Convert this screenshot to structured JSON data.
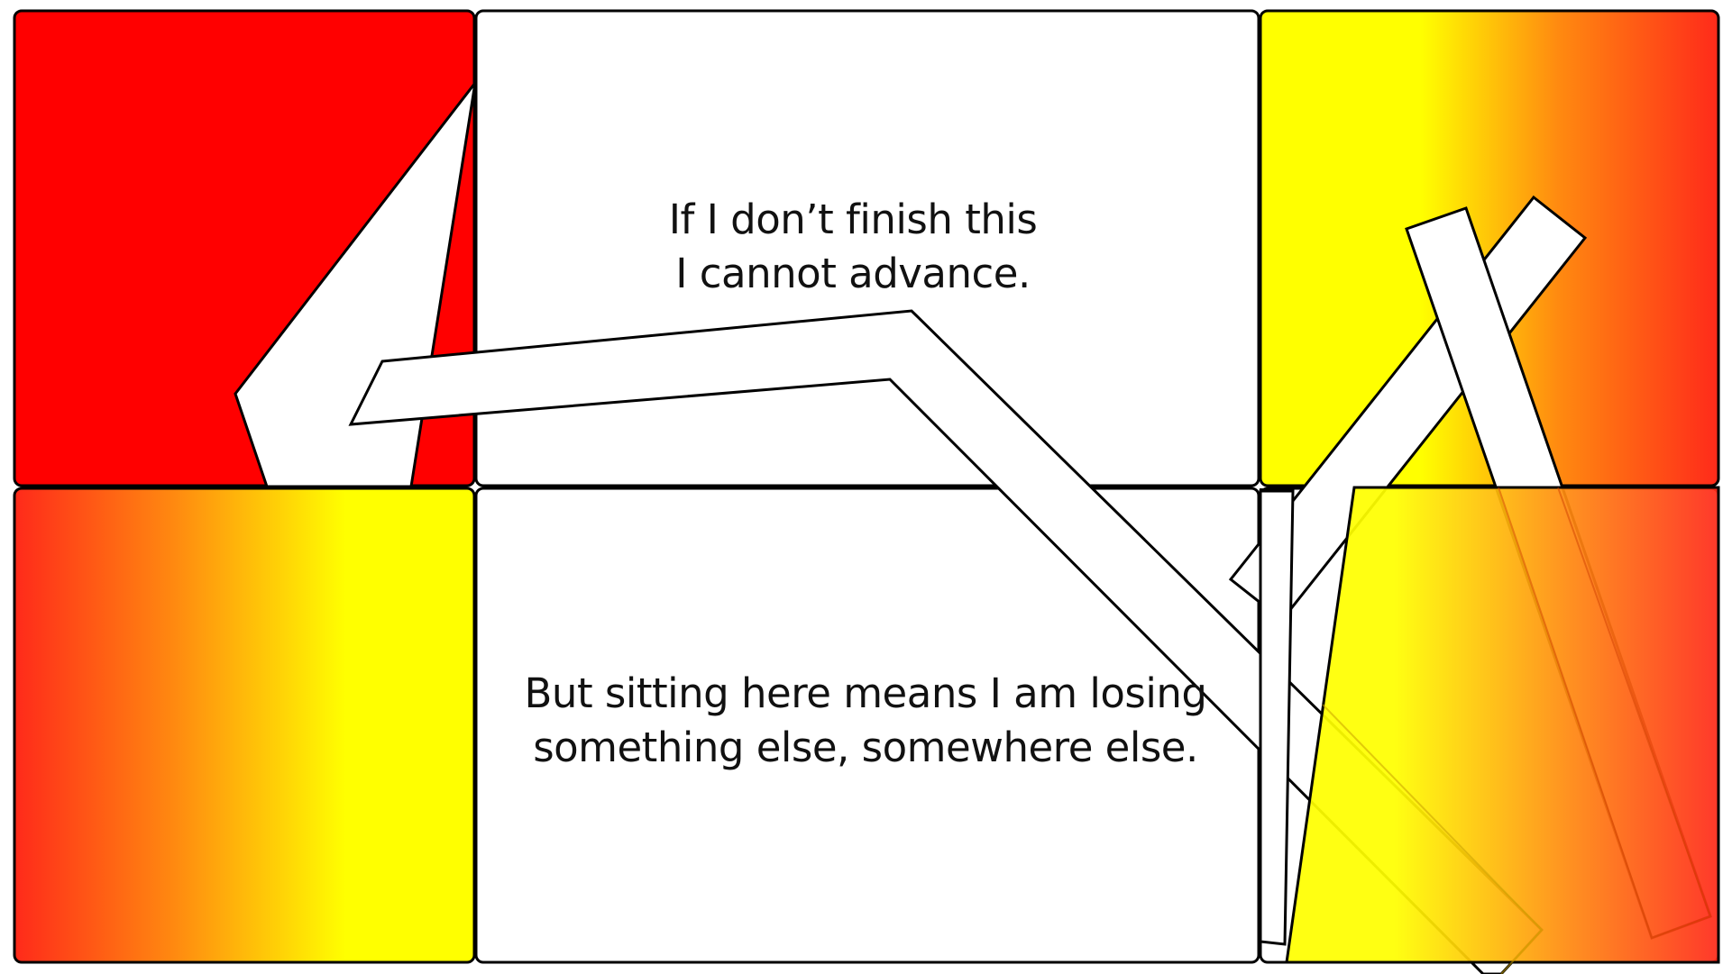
{
  "panels": {
    "top_caption": {
      "line1": "If I don’t finish this",
      "line2": "I cannot advance."
    },
    "bottom_caption": {
      "line1": "But sitting here means I am losing",
      "line2": "something else, somewhere else."
    }
  },
  "colors": {
    "red": "#ff0000",
    "yellow": "#ffff00",
    "orange_red": "#ff2a1a",
    "white": "#ffffff",
    "stroke": "#000000"
  }
}
